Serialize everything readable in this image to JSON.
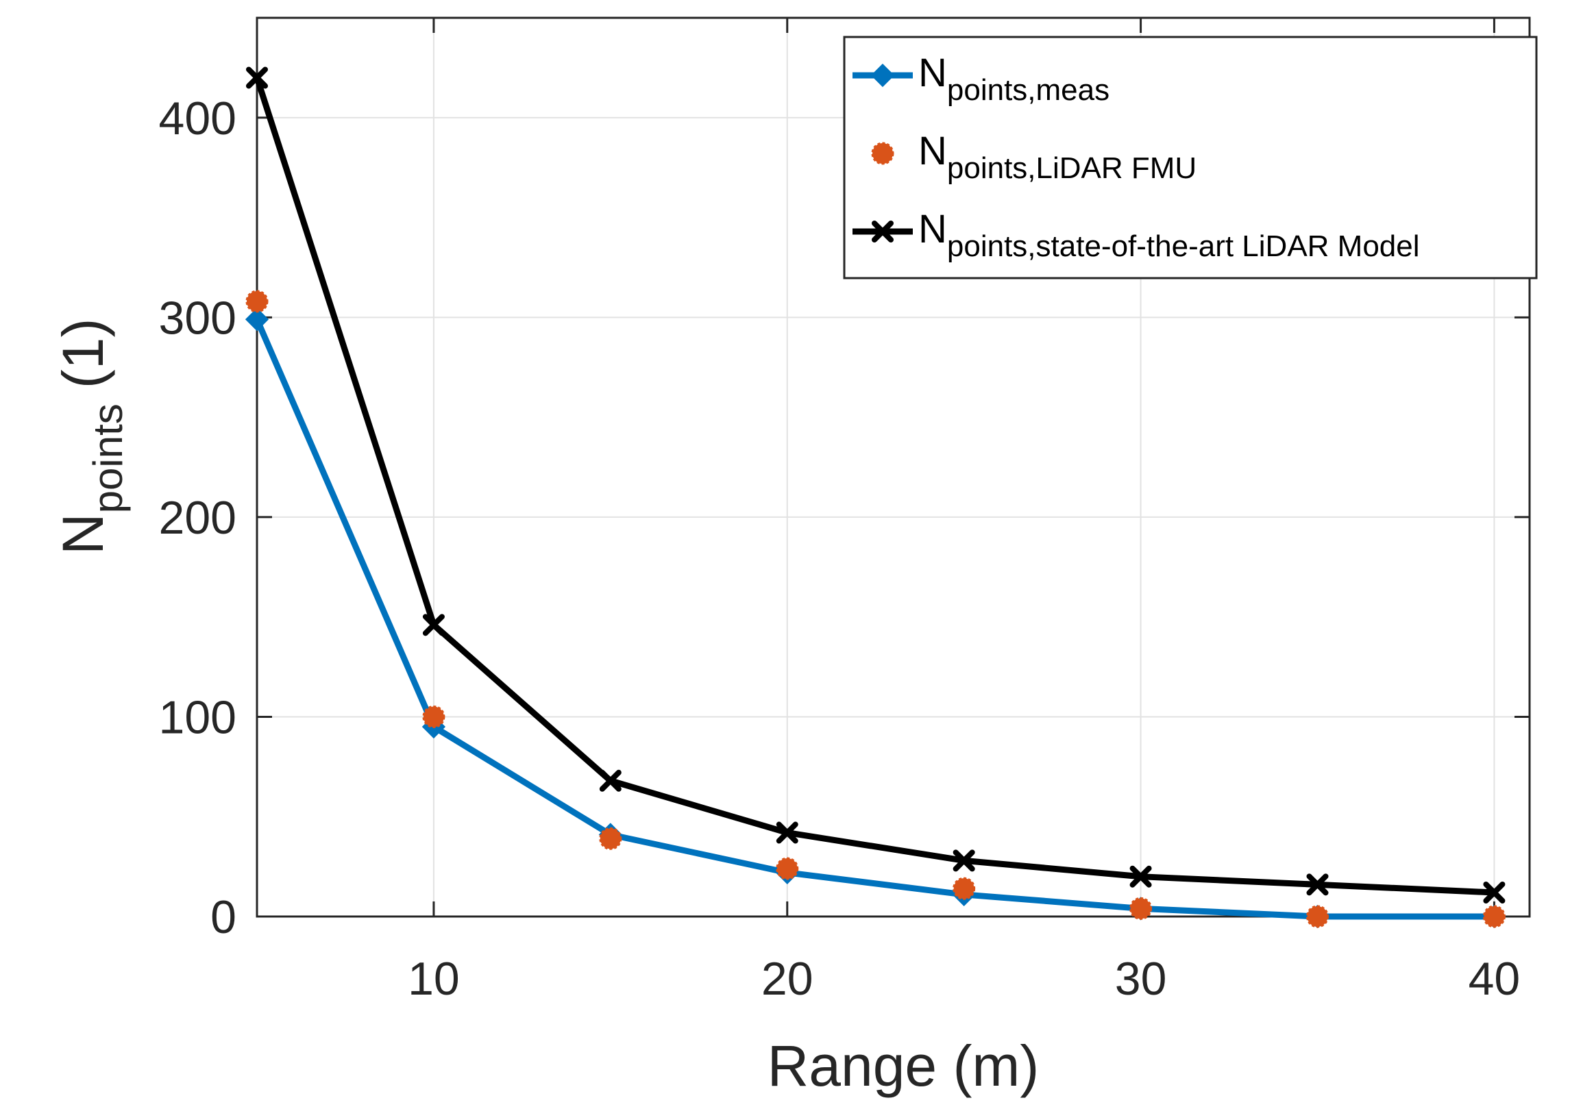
{
  "chart_data": {
    "type": "line",
    "title": "",
    "xlabel": "Range (m)",
    "ylabel_main": "N",
    "ylabel_sub": "points",
    "ylabel_unit": "(1)",
    "xlim": [
      5,
      41
    ],
    "ylim": [
      0,
      450
    ],
    "grid": true,
    "legend_position": "top-right",
    "x_ticks": [
      10,
      20,
      30,
      40
    ],
    "x_tick_labels": [
      "10",
      "20",
      "30",
      "40"
    ],
    "y_ticks": [
      0,
      100,
      200,
      300,
      400
    ],
    "y_tick_labels": [
      "0",
      "100",
      "200",
      "300",
      "400"
    ],
    "series": [
      {
        "id": "meas",
        "name_main": "N",
        "name_sub": "points,meas",
        "color": "#0072BD",
        "marker": "diamond",
        "line": true,
        "x": [
          5,
          10,
          15,
          20,
          25,
          30,
          35,
          40
        ],
        "values": [
          299,
          95,
          41,
          22,
          11,
          4,
          0,
          0
        ]
      },
      {
        "id": "fmu",
        "name_main": "N",
        "name_sub": "points,LiDAR FMU",
        "color": "#D95319",
        "marker": "circle",
        "line": false,
        "x": [
          5,
          10,
          15,
          20,
          25,
          30,
          35,
          40
        ],
        "values": [
          308,
          100,
          39,
          24,
          14,
          4,
          0,
          0
        ]
      },
      {
        "id": "sota",
        "name_main": "N",
        "name_sub": "points,state-of-the-art LiDAR Model",
        "color": "#000000",
        "marker": "x",
        "line": true,
        "x": [
          5,
          10,
          15,
          20,
          25,
          30,
          35,
          40
        ],
        "values": [
          420,
          146,
          68,
          42,
          28,
          20,
          16,
          12
        ]
      }
    ]
  }
}
